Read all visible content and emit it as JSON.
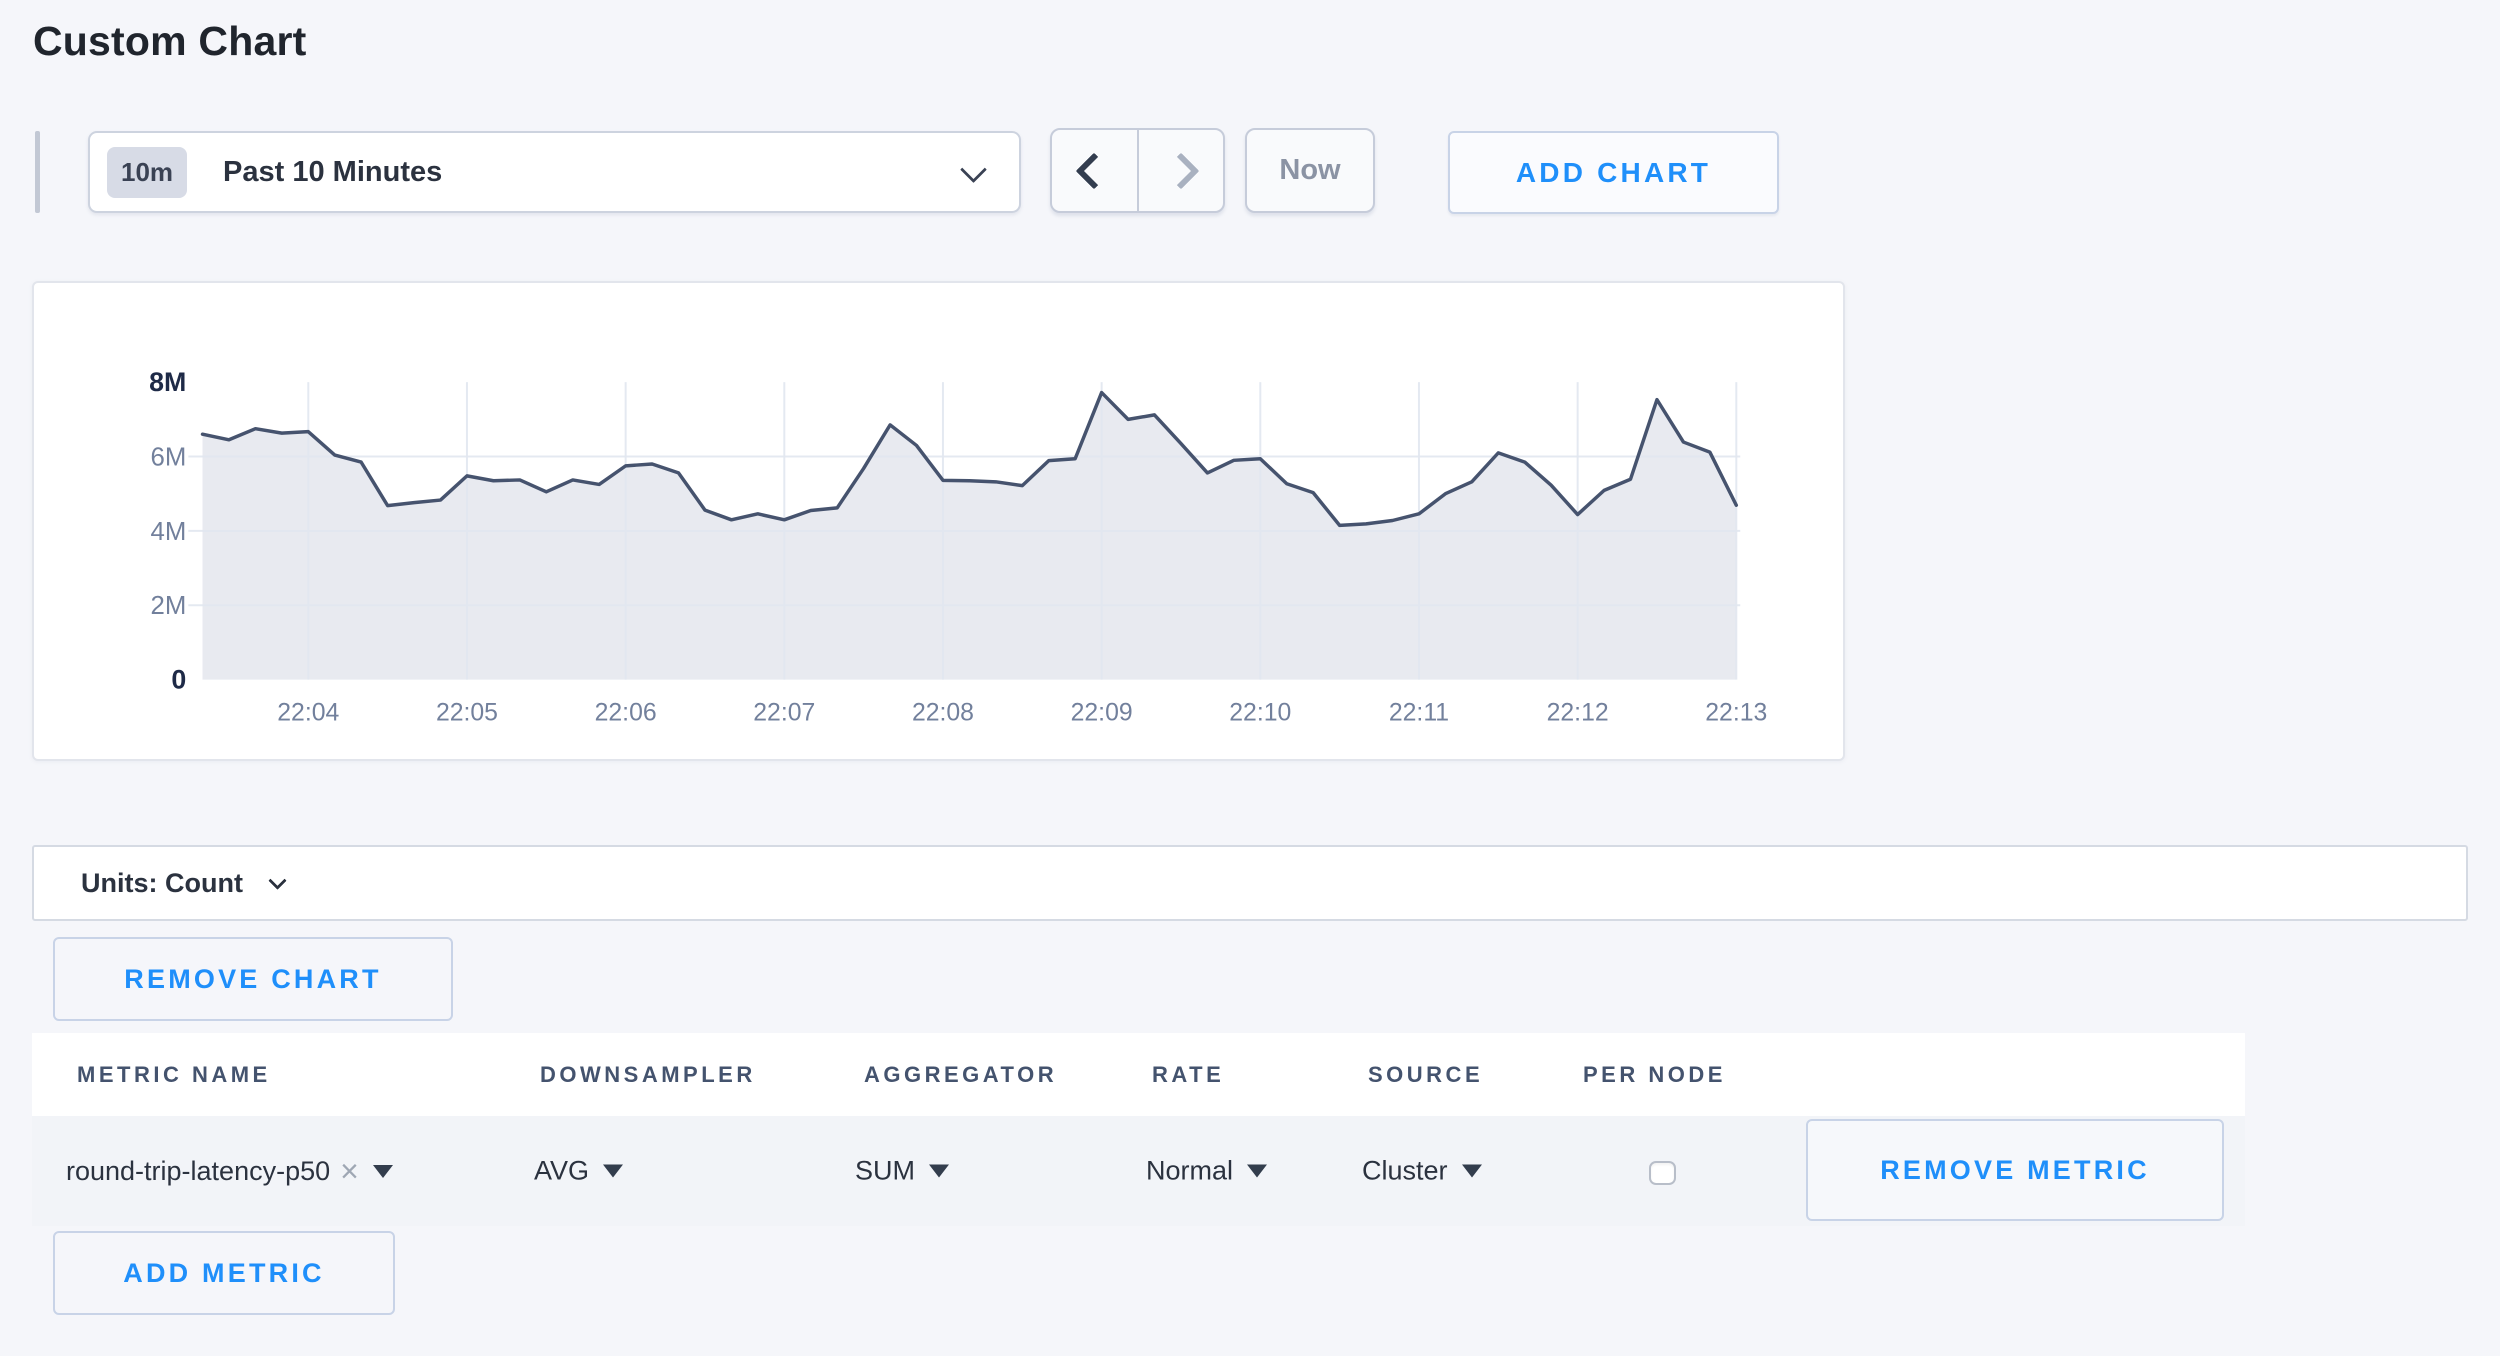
{
  "page": {
    "title": "Custom Chart",
    "background": "#f5f6fa",
    "accent_blue": "#1f8ffa"
  },
  "icons": {
    "range_dropdown_chevron": "chevron-down",
    "back_arrow": "chevron-left",
    "forward_arrow": "chevron-right",
    "units_chevron": "chevron-down",
    "select_caret": "caret-down",
    "remove_tag": "×"
  },
  "time_controls": {
    "range_badge": "10m",
    "range_label": "Past 10 Minutes",
    "now_label": "Now",
    "add_chart_label": "ADD CHART"
  },
  "chart_data": {
    "type": "area",
    "title": "",
    "unit": "Count",
    "x_tick_labels": [
      "22:04",
      "22:05",
      "22:06",
      "22:07",
      "22:08",
      "22:09",
      "22:10",
      "22:11",
      "22:12",
      "22:13"
    ],
    "y_ticks": [
      {
        "label": "0",
        "value_millions": 0,
        "emphasized": true
      },
      {
        "label": "2M",
        "value_millions": 2,
        "emphasized": false
      },
      {
        "label": "4M",
        "value_millions": 4,
        "emphasized": false
      },
      {
        "label": "6M",
        "value_millions": 6,
        "emphasized": false
      },
      {
        "label": "8M",
        "value_millions": 8,
        "emphasized": true
      }
    ],
    "ylim_millions": [
      0,
      8
    ],
    "point_interval_seconds": 10,
    "first_point_index_of_first_tick": 4,
    "series": [
      {
        "name": "round-trip-latency-p50",
        "values_millions": [
          6.6,
          6.45,
          6.75,
          6.63,
          6.67,
          6.04,
          5.85,
          4.68,
          4.76,
          4.83,
          5.48,
          5.35,
          5.37,
          5.05,
          5.37,
          5.25,
          5.75,
          5.8,
          5.56,
          4.56,
          4.3,
          4.46,
          4.3,
          4.55,
          4.62,
          5.68,
          6.85,
          6.3,
          5.36,
          5.35,
          5.32,
          5.22,
          5.89,
          5.94,
          7.72,
          7.0,
          7.12,
          6.35,
          5.56,
          5.9,
          5.94,
          5.27,
          5.03,
          4.15,
          4.19,
          4.28,
          4.46,
          5.0,
          5.32,
          6.1,
          5.85,
          5.23,
          4.44,
          5.09,
          5.39,
          7.53,
          6.39,
          6.12,
          4.69
        ]
      }
    ],
    "line_color": "#46536e",
    "fill_color": "#e8eaf0",
    "grid_color": "#e2e7f0",
    "tick_label_color": "#72809c",
    "emphasized_label_color": "#1e2a47",
    "grid": true,
    "legend": "none"
  },
  "units_bar": {
    "label": "Units: Count"
  },
  "chart_actions": {
    "remove_chart_label": "REMOVE CHART",
    "add_metric_label": "ADD METRIC"
  },
  "metrics_table": {
    "headers": [
      "METRIC NAME",
      "DOWNSAMPLER",
      "AGGREGATOR",
      "RATE",
      "SOURCE",
      "PER NODE"
    ],
    "rows": [
      {
        "metric_name": "round-trip-latency-p50",
        "downsampler": "AVG",
        "aggregator": "SUM",
        "rate": "Normal",
        "source": "Cluster",
        "per_node_checked": false,
        "remove_metric_label": "REMOVE METRIC"
      }
    ]
  }
}
